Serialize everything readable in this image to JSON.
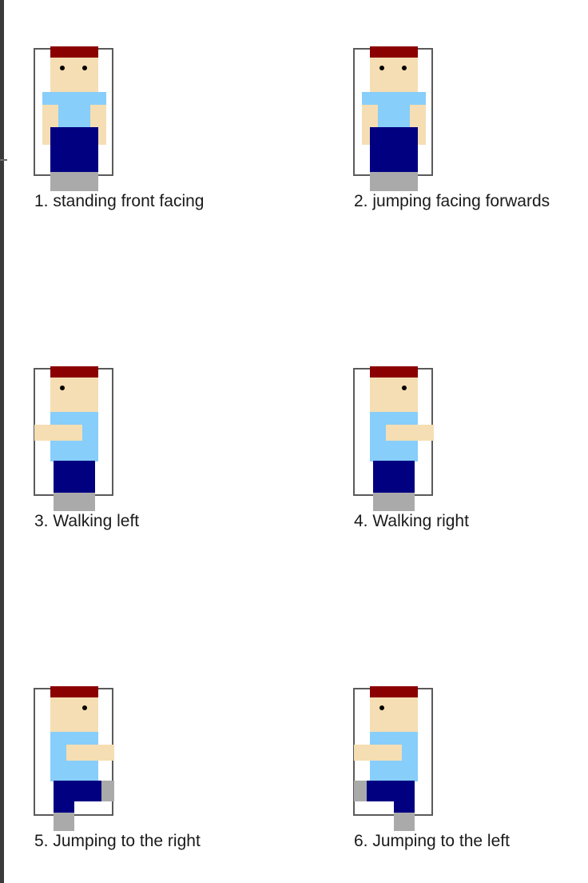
{
  "colors": {
    "hair": "#8b0000",
    "skin": "#f5deb3",
    "shirt": "#87cefa",
    "pants": "#000080",
    "shoes": "#aaaaaa",
    "frame": "#5a5a5a"
  },
  "sprites": [
    {
      "caption": "1. standing front facing",
      "pose": "front"
    },
    {
      "caption": "2. jumping facing forwards",
      "pose": "front-jump"
    },
    {
      "caption": "3. Walking left",
      "pose": "walk-left"
    },
    {
      "caption": "4. Walking right",
      "pose": "walk-right"
    },
    {
      "caption": "5. Jumping to the right",
      "pose": "jump-right"
    },
    {
      "caption": "6. Jumping to the left",
      "pose": "jump-left"
    }
  ]
}
